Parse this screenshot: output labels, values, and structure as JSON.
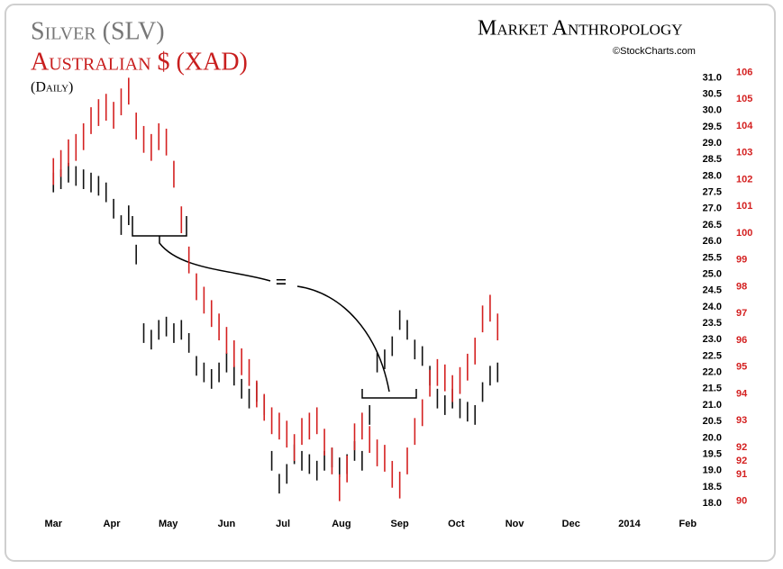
{
  "chart_data": {
    "type": "ohlc",
    "subtitle": "(Daily)",
    "logo": "Market Anthropology",
    "source": "©StockCharts.com",
    "annotation": "=",
    "x": [
      0,
      4,
      8,
      12,
      16,
      20,
      24,
      28,
      32,
      36,
      40,
      44,
      48,
      52,
      56,
      60,
      64,
      68,
      72,
      76,
      80,
      84,
      88,
      92,
      96,
      100,
      104,
      108,
      112,
      116,
      120,
      124,
      128,
      132,
      136,
      140,
      144,
      148,
      152,
      156,
      160,
      164,
      168,
      172,
      176,
      180,
      184,
      188,
      192,
      196,
      200,
      204,
      208,
      212,
      216,
      220,
      224,
      228,
      232,
      236
    ],
    "xlim": [
      -14,
      345
    ],
    "xticks": [
      {
        "value": 0,
        "label": "Mar"
      },
      {
        "value": 31,
        "label": "Apr"
      },
      {
        "value": 61,
        "label": "May"
      },
      {
        "value": 92,
        "label": "Jun"
      },
      {
        "value": 122,
        "label": "Jul"
      },
      {
        "value": 153,
        "label": "Aug"
      },
      {
        "value": 184,
        "label": "Sep"
      },
      {
        "value": 214,
        "label": "Oct"
      },
      {
        "value": 245,
        "label": "Nov"
      },
      {
        "value": 275,
        "label": "Dec"
      },
      {
        "value": 306,
        "label": "2014"
      },
      {
        "value": 337,
        "label": "Feb"
      }
    ],
    "ylim": [
      17.7,
      31.45
    ],
    "yticks": [
      {
        "value": 18,
        "label": "18.0"
      },
      18.5,
      {
        "value": 19,
        "label": "19.0"
      },
      19.5,
      {
        "value": 20,
        "label": "20.0"
      },
      20.5,
      {
        "value": 21,
        "label": "21.0"
      },
      21.5,
      {
        "value": 22,
        "label": "22.0"
      },
      22.5,
      {
        "value": 23,
        "label": "23.0"
      },
      23.5,
      {
        "value": 24,
        "label": "24.0"
      },
      24.5,
      {
        "value": 25,
        "label": "25.0"
      },
      25.5,
      {
        "value": 26,
        "label": "26.0"
      },
      26.5,
      {
        "value": 27,
        "label": "27.0"
      },
      27.5,
      {
        "value": 28,
        "label": "28.0"
      },
      28.5,
      {
        "value": 29,
        "label": "29.0"
      },
      29.5,
      {
        "value": 30,
        "label": "30.0"
      },
      30.5,
      {
        "value": 31,
        "label": "31.0"
      }
    ],
    "y2lim": [
      89.55,
      106.35
    ],
    "y2ticks": [
      90,
      91,
      {
        "value": 91.5,
        "label": "92"
      },
      92,
      93,
      94,
      95,
      96,
      97,
      98,
      99,
      100,
      101,
      102,
      103,
      104,
      105,
      106
    ],
    "series": [
      {
        "name": "Silver (SLV)",
        "color": "#111111",
        "title_color": "#777777",
        "high": [
          28.1,
          28.2,
          28.4,
          28.3,
          28.2,
          28.1,
          28.0,
          27.8,
          27.3,
          26.8,
          27.1,
          25.9,
          23.5,
          23.3,
          23.6,
          23.7,
          23.5,
          23.6,
          23.2,
          22.5,
          22.3,
          22.1,
          22.3,
          22.6,
          22.2,
          21.8,
          21.5,
          21.7,
          21.3,
          19.6,
          18.9,
          19.2,
          19.8,
          19.6,
          19.5,
          19.3,
          19.6,
          19.7,
          19.4,
          19.5,
          19.9,
          19.6,
          21.0,
          22.6,
          22.7,
          23.1,
          23.9,
          23.6,
          23.0,
          22.8,
          22.2,
          21.5,
          21.3,
          21.5,
          21.2,
          21.1,
          21.0,
          21.7,
          22.2,
          22.3
        ],
        "low": [
          27.5,
          27.6,
          27.8,
          27.7,
          27.6,
          27.5,
          27.4,
          27.2,
          26.7,
          26.2,
          26.5,
          25.3,
          22.9,
          22.7,
          23.0,
          23.1,
          22.9,
          23.0,
          22.6,
          21.9,
          21.7,
          21.5,
          21.7,
          22.0,
          21.6,
          21.2,
          20.9,
          21.1,
          20.7,
          19.0,
          18.3,
          18.6,
          19.2,
          19.0,
          18.9,
          18.7,
          19.0,
          19.1,
          18.8,
          18.9,
          19.3,
          19.0,
          20.4,
          22.0,
          22.1,
          22.5,
          23.3,
          23.0,
          22.4,
          22.2,
          21.6,
          20.9,
          20.7,
          20.9,
          20.6,
          20.5,
          20.4,
          21.1,
          21.6,
          21.7
        ]
      },
      {
        "name": "Australian $ (XAD)",
        "color": "#d42020",
        "title_color": "#c81e1e",
        "axis": "y2",
        "high": [
          102.8,
          103.1,
          103.5,
          103.7,
          104.1,
          104.7,
          105.0,
          105.2,
          104.9,
          105.4,
          105.8,
          104.5,
          104.0,
          103.7,
          104.1,
          103.9,
          102.7,
          101.0,
          99.5,
          98.5,
          98.0,
          97.5,
          97.0,
          96.5,
          96.0,
          95.7,
          95.3,
          94.5,
          94.0,
          93.5,
          93.3,
          93.0,
          92.5,
          93.1,
          93.3,
          93.5,
          92.7,
          92.0,
          91.0,
          91.7,
          92.9,
          93.3,
          92.8,
          92.3,
          92.1,
          91.5,
          91.1,
          92.0,
          93.1,
          93.8,
          94.9,
          95.3,
          95.1,
          94.7,
          95.0,
          95.5,
          96.1,
          97.3,
          97.7,
          97.0
        ],
        "low": [
          101.8,
          102.1,
          102.5,
          102.7,
          103.1,
          103.7,
          104.0,
          104.2,
          103.9,
          104.4,
          104.8,
          103.5,
          103.0,
          102.7,
          103.1,
          102.9,
          101.7,
          100.0,
          98.5,
          97.5,
          97.0,
          96.5,
          96.0,
          95.5,
          95.0,
          94.7,
          94.3,
          93.5,
          93.0,
          92.5,
          92.3,
          92.0,
          91.5,
          92.1,
          92.3,
          92.5,
          91.7,
          91.0,
          90.0,
          90.7,
          91.9,
          92.3,
          91.8,
          91.3,
          91.1,
          90.5,
          90.1,
          91.0,
          92.1,
          92.8,
          93.9,
          94.3,
          94.1,
          93.7,
          94.0,
          94.5,
          95.1,
          96.3,
          96.7,
          96.0
        ]
      }
    ]
  }
}
